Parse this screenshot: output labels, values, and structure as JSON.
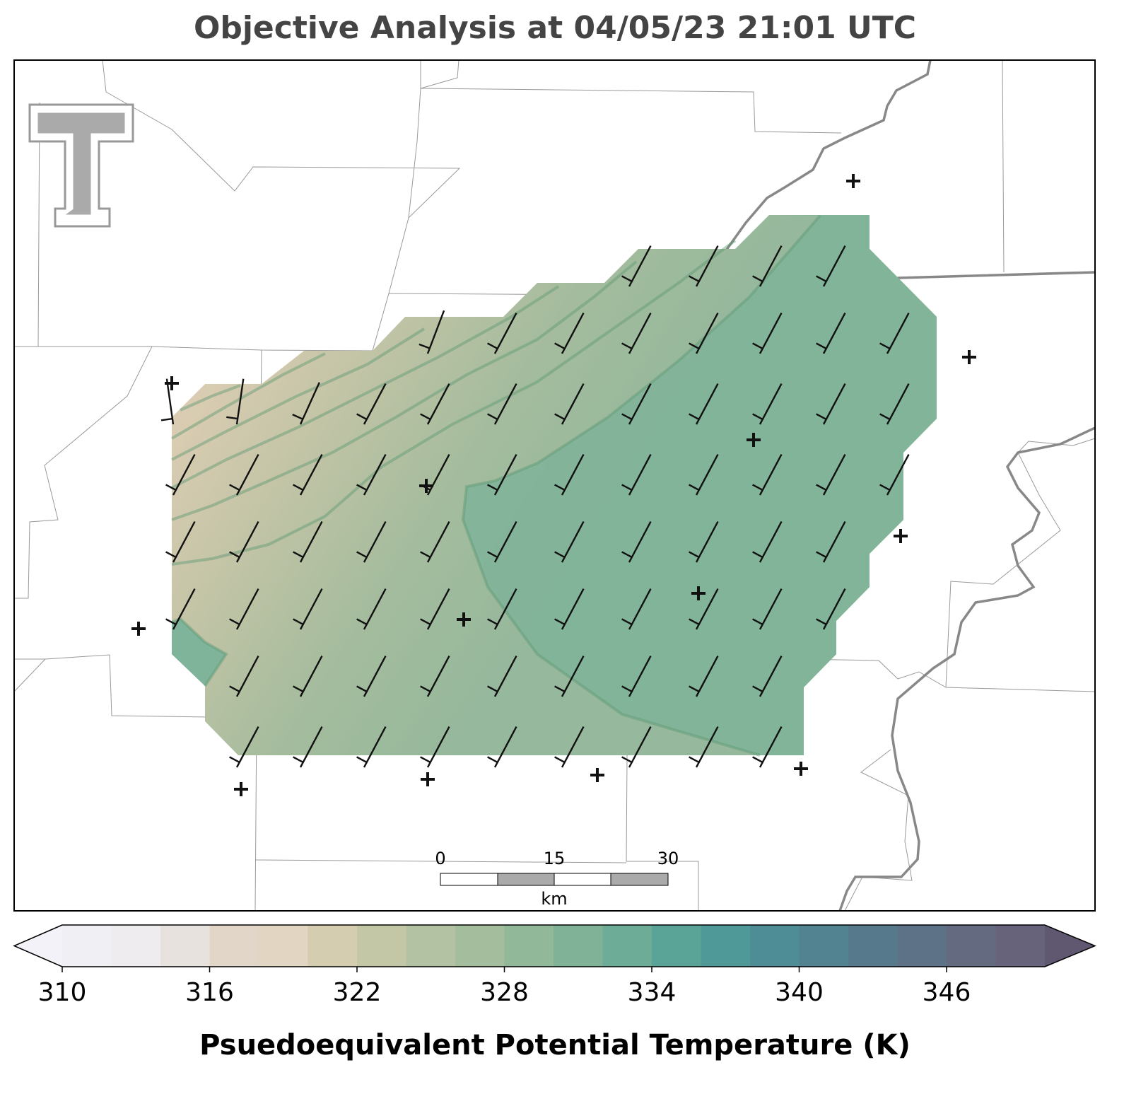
{
  "chart_data": {
    "type": "colorbar",
    "title": "Objective Analysis at 04/05/23 21:01 UTC",
    "label": "Psuedoequivalent Potential Temperature (K)",
    "xlim": [
      310,
      350
    ],
    "xticks": [
      310,
      316,
      322,
      328,
      334,
      340,
      346
    ],
    "colors": [
      "#efeff4",
      "#eeecee",
      "#e8e2df",
      "#e2d6c8",
      "#e2d5c1",
      "#d4cdb0",
      "#c4c7a6",
      "#b2c2a3",
      "#a3bd9d",
      "#92b89a",
      "#80b298",
      "#6dac96",
      "#5aa497",
      "#4f9a98",
      "#4e8d95",
      "#518390",
      "#567a8c",
      "#5e7287",
      "#646a80",
      "#67637a"
    ],
    "extend_colors": [
      "#f2f2f8",
      "#5f5870"
    ]
  },
  "scale_bar": {
    "ticks": [
      0,
      15,
      30
    ],
    "unit": "km"
  }
}
